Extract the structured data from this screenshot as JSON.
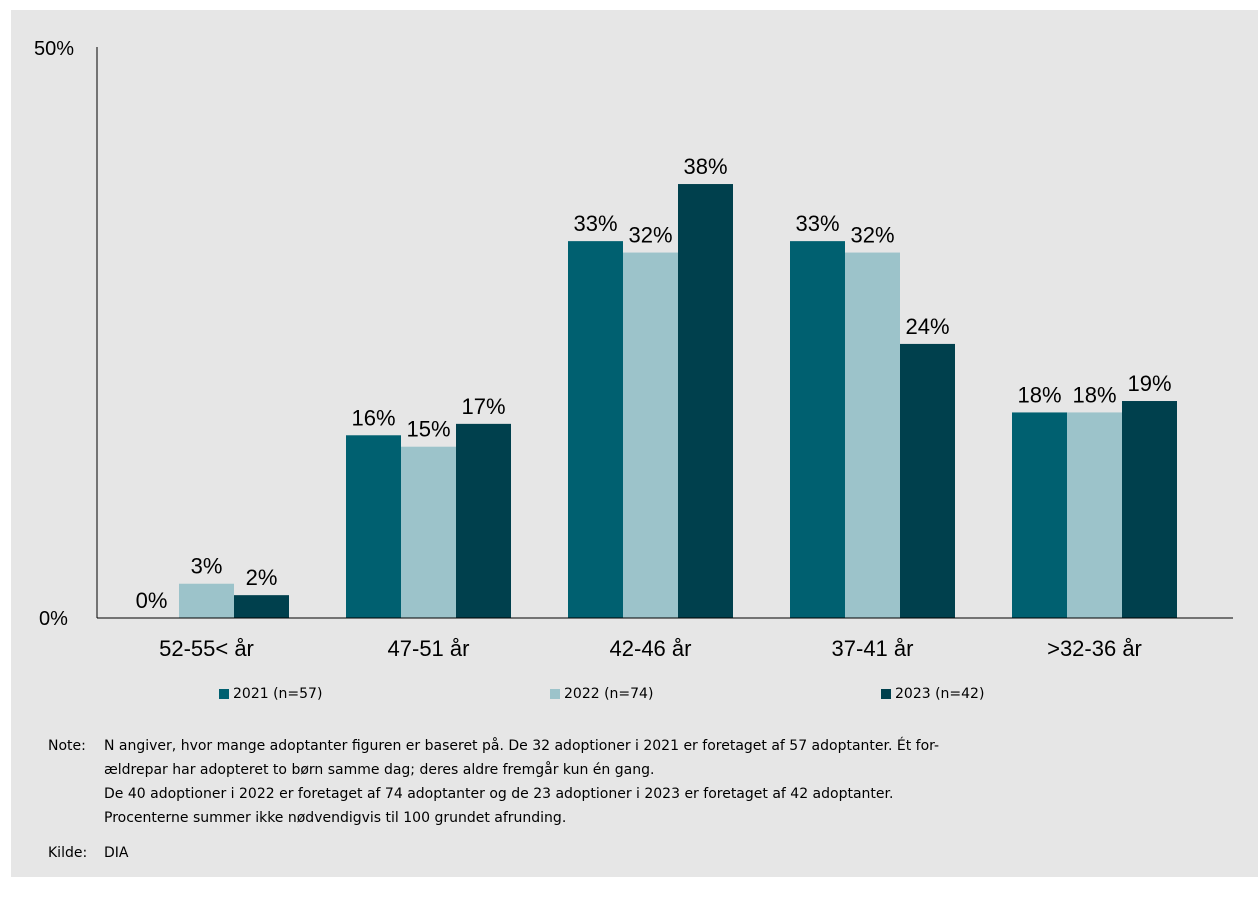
{
  "chart_data": {
    "type": "bar",
    "categories": [
      "52-55< år",
      "47-51 år",
      "42-46 år",
      "37-41 år",
      ">32-36 år"
    ],
    "series": [
      {
        "name": "2021 (n=57)",
        "color": "#006070",
        "values": [
          0,
          16,
          33,
          33,
          18
        ],
        "labels": [
          "0%",
          "16%",
          "33%",
          "33%",
          "18%"
        ]
      },
      {
        "name": "2022 (n=74)",
        "color": "#9cc3ca",
        "values": [
          3,
          15,
          32,
          32,
          18
        ],
        "labels": [
          "3%",
          "15%",
          "32%",
          "32%",
          "18%"
        ]
      },
      {
        "name": "2023 (n=42)",
        "color": "#00404d",
        "values": [
          2,
          17,
          38,
          24,
          19
        ],
        "labels": [
          "2%",
          "17%",
          "38%",
          "24%",
          "19%"
        ]
      }
    ],
    "y_ticks": [
      "0%",
      "50%"
    ],
    "ylim": [
      0,
      50
    ],
    "grid": false,
    "legend_position": "bottom"
  },
  "note": {
    "label": "Note:",
    "lines": [
      "N angiver, hvor mange adoptanter figuren er baseret på.  De 32 adoptioner i 2021 er foretaget af 57 adoptanter. Ét for-",
      "ældrepar har adopteret to børn samme dag; deres aldre fremgår kun én gang.",
      "De 40 adoptioner i 2022 er foretaget af 74 adoptanter og de 23 adoptioner i 2023 er foretaget af 42 adoptanter.",
      "Procenterne summer ikke nødvendigvis til 100 grundet afrunding."
    ]
  },
  "source": {
    "label": "Kilde:",
    "text": "DIA"
  }
}
